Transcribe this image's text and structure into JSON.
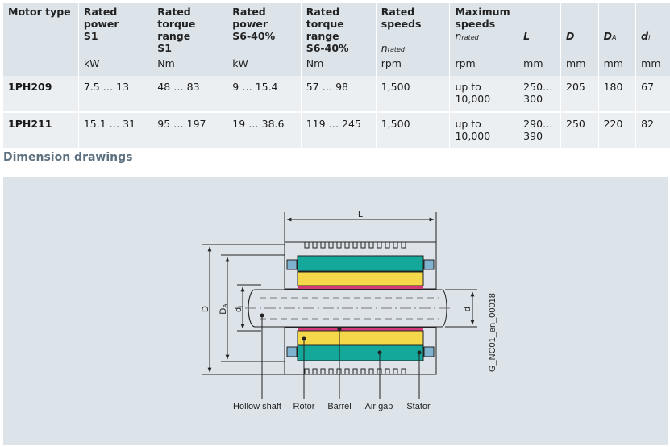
{
  "table": {
    "headers": [
      {
        "line1": "Motor type",
        "line2": "",
        "sym": "",
        "sym_sub": "",
        "unit": ""
      },
      {
        "line1": "Rated power",
        "line2": "S1",
        "sym": "",
        "sym_sub": "",
        "unit": "kW"
      },
      {
        "line1": "Rated torque range",
        "line2": "S1",
        "sym": "",
        "sym_sub": "",
        "unit": "Nm"
      },
      {
        "line1": "Rated power",
        "line2": "S6-40%",
        "sym": "",
        "sym_sub": "",
        "unit": "kW"
      },
      {
        "line1": "Rated torque range",
        "line2": "S6-40%",
        "sym": "",
        "sym_sub": "",
        "unit": "Nm"
      },
      {
        "line1": "Rated speeds",
        "line2": "",
        "sym": "n",
        "sym_sub": "rated",
        "unit": "rpm"
      },
      {
        "line1": "Maximum speeds",
        "line2": "",
        "sym": "n",
        "sym_sub": "rated",
        "unit": "rpm"
      },
      {
        "line1": "",
        "line2": "",
        "sym": "L",
        "sym_sub": "",
        "unit": "mm"
      },
      {
        "line1": "",
        "line2": "",
        "sym": "D",
        "sym_sub": "",
        "unit": "mm"
      },
      {
        "line1": "",
        "line2": "",
        "sym": "D",
        "sym_sub": "A",
        "unit": "mm"
      },
      {
        "line1": "",
        "line2": "",
        "sym": "d",
        "sym_sub": "i",
        "unit": "mm"
      }
    ],
    "rows": [
      {
        "model": "1PH209",
        "p_s1": "7.5 … 13",
        "t_s1": "48 … 83",
        "p_s6": "9 … 15.4",
        "t_s6": "57 … 98",
        "n_rated": "1,500",
        "n_max_1": "up to",
        "n_max_2": "10,000",
        "L_1": "250…",
        "L_2": "300",
        "D": "205",
        "DA": "180",
        "di": "67"
      },
      {
        "model": "1PH211",
        "p_s1": "15.1 … 31",
        "t_s1": "95 … 197",
        "p_s6": "19 … 38.6",
        "t_s6": "119 … 245",
        "n_rated": "1,500",
        "n_max_1": "up to",
        "n_max_2": "10,000",
        "L_1": "290…",
        "L_2": "390",
        "D": "250",
        "DA": "220",
        "di": "82"
      }
    ]
  },
  "section_title": "Dimension drawings",
  "drawing": {
    "dim_L": "L",
    "dim_D": "D",
    "dim_DA": "D",
    "dim_DA_sub": "A",
    "dim_di": "d",
    "dim_di_sub": "i",
    "dim_d": "d",
    "code": "G_NC01_en_00018",
    "labels": {
      "hollow_shaft": "Hollow shaft",
      "rotor": "Rotor",
      "barrel": "Barrel",
      "air_gap": "Air gap",
      "stator": "Stator"
    },
    "colors": {
      "stator": "#14a89a",
      "rotor": "#f5d84a",
      "air_gap": "#d23a7a",
      "seal": "#7fb2cf",
      "housing": "#dde3e8"
    }
  }
}
